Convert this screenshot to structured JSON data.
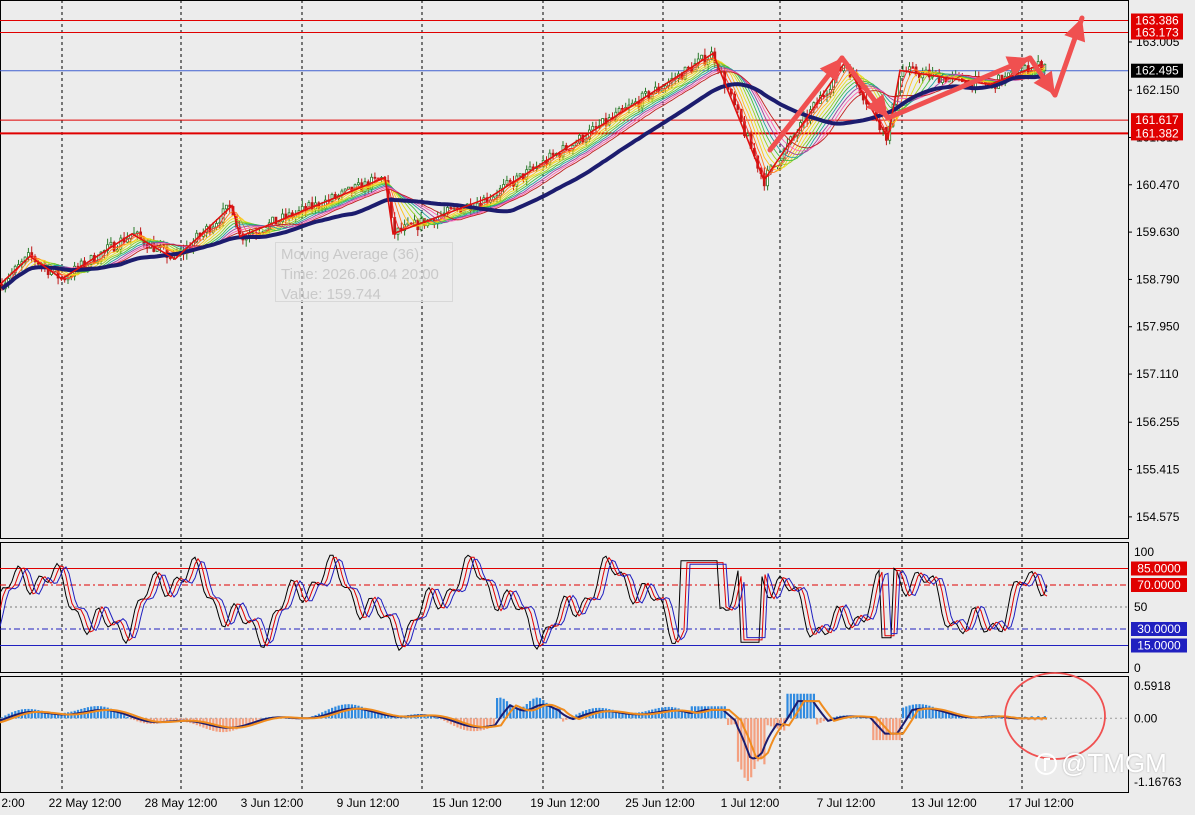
{
  "colors": {
    "background": "#ececec",
    "grid": "#000000",
    "bull_candle": "#2a7a2a",
    "bear_candle": "#c01818",
    "zigzag": "#e01010",
    "annotation_arrow": "#f05050",
    "ma_thick": "#1c1c6e",
    "level_line": "#e00000",
    "bid_line": "#4060d0",
    "stoch_main": "#000000",
    "stoch_signal": "#e00000",
    "stoch_third": "#2020c0",
    "macd_up": "#2f8ae0",
    "macd_down": "#f4a080",
    "macd_line": "#1c1c6e",
    "signal_line": "#f08c1e"
  },
  "tooltip": {
    "line1": "Moving Average (36)",
    "line2": "Time: 2026.06.04 20:00",
    "line3": "Value: 159.744"
  },
  "price_axis": {
    "ticks": [
      "163.005",
      "162.150",
      "161.310",
      "160.470",
      "159.630",
      "158.790",
      "157.950",
      "157.110",
      "156.255",
      "155.415",
      "154.575"
    ]
  },
  "levels": [
    {
      "label": "163.386",
      "kind": "resistance"
    },
    {
      "label": "163.173",
      "kind": "resistance"
    },
    {
      "label": "162.495",
      "kind": "bid"
    },
    {
      "label": "161.617",
      "kind": "support"
    },
    {
      "label": "161.382",
      "kind": "support"
    }
  ],
  "time_axis": {
    "labels": [
      "2:00",
      "22 May 12:00",
      "28 May 12:00",
      "3 Jun 12:00",
      "9 Jun 12:00",
      "15 Jun 12:00",
      "19 Jun 12:00",
      "25 Jun 12:00",
      "1 Jul 12:00",
      "7 Jul 12:00",
      "13 Jul 12:00",
      "17 Jul 12:00"
    ]
  },
  "stochastic": {
    "axis_ticks": [
      "100",
      "50",
      "0"
    ],
    "levels": [
      "85.0000",
      "70.0000",
      "30.0000",
      "15.0000"
    ]
  },
  "macd": {
    "axis_ticks": [
      "0.5918",
      "0.00",
      "-1.16763"
    ]
  },
  "watermark": {
    "text": "@TMGM"
  },
  "chart_data": {
    "type": "candlestick",
    "symbol_timeframe": "",
    "price_range": [
      154.2,
      163.75
    ],
    "zigzag_price_points": [
      158.7,
      159.2,
      158.8,
      159.6,
      159.15,
      160.1,
      159.55,
      160.6,
      159.6,
      160.25,
      162.8,
      160.55,
      162.65,
      161.3,
      162.5,
      162.25,
      162.6
    ],
    "ma36_last_value": 162.25,
    "annotation_arrows": [
      "up",
      "down",
      "up",
      "down",
      "up"
    ],
    "stochastic_levels": [
      85,
      70,
      30,
      15
    ],
    "macd_range": [
      -1.16763,
      0.5918
    ]
  }
}
